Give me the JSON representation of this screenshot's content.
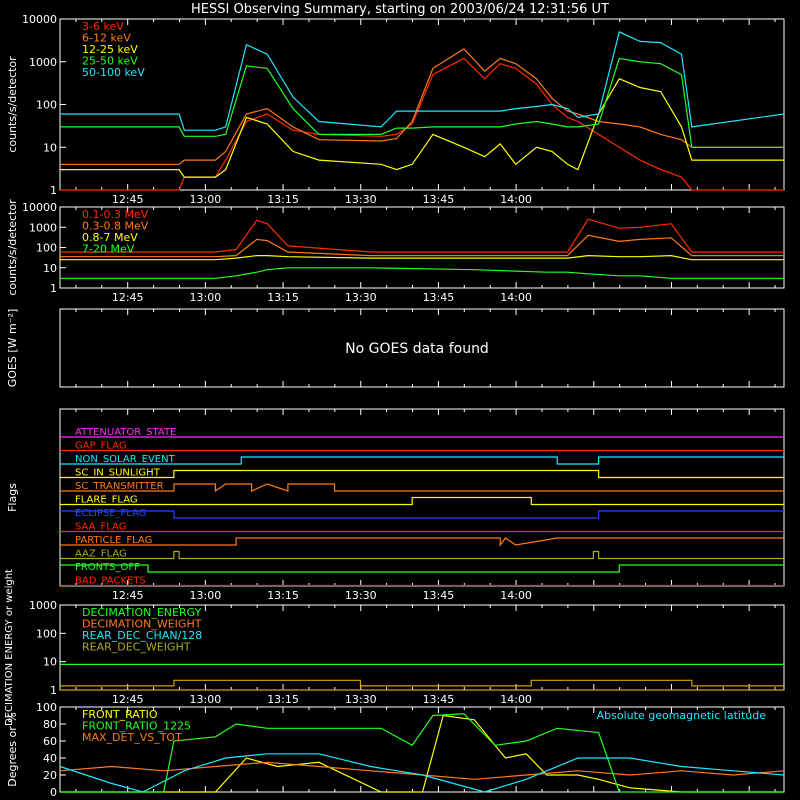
{
  "title": "HESSI Observing Summary, starting on 2003/06/24 12:31:56 UT",
  "colors": {
    "white": "#ffffff",
    "red": "#ff2a00",
    "orange": "#ff7a1a",
    "yellow": "#ffff00",
    "green": "#22ff22",
    "cyan": "#22e6ff",
    "magenta": "#ff2aff",
    "blue": "#2244ff",
    "olive": "#aaaa22",
    "goldenrod": "#d8a000",
    "gray": "#888888"
  },
  "time_axis": {
    "start_time": "12:31:56",
    "ticks": [
      "12:45",
      "13:00",
      "13:15",
      "13:30",
      "13:45",
      "14:00"
    ],
    "xlim_min": [
      0,
      139.8
    ]
  },
  "chart_data": [
    {
      "type": "line",
      "ylabel": "counts/s/detector",
      "yscale": "log",
      "ylim": [
        1,
        10000
      ],
      "yticks": [
        "1",
        "10",
        "100",
        "1000",
        "10000"
      ],
      "legend_position": "top-left",
      "series": [
        {
          "name": "3-6 keV",
          "color": "#ff2a00",
          "x": [
            0,
            23,
            24,
            30,
            32,
            36,
            40,
            45,
            50,
            62,
            65,
            68,
            72,
            78,
            82,
            85,
            88,
            92,
            95,
            98,
            100,
            104,
            108,
            112,
            116,
            120,
            122,
            139.8
          ],
          "y": [
            1,
            1,
            2,
            2,
            5,
            40,
            60,
            25,
            20,
            18,
            20,
            35,
            500,
            1200,
            400,
            900,
            700,
            300,
            100,
            50,
            40,
            20,
            10,
            5,
            3,
            2,
            1,
            1
          ]
        },
        {
          "name": "6-12 keV",
          "color": "#ff7a1a",
          "x": [
            0,
            23,
            24,
            30,
            32,
            36,
            40,
            45,
            50,
            62,
            65,
            68,
            72,
            78,
            82,
            85,
            88,
            92,
            95,
            98,
            100,
            104,
            108,
            112,
            116,
            120,
            122,
            139.8
          ],
          "y": [
            4,
            4,
            5,
            5,
            8,
            60,
            80,
            30,
            15,
            14,
            16,
            40,
            700,
            2000,
            600,
            1200,
            900,
            400,
            140,
            70,
            60,
            40,
            35,
            30,
            20,
            15,
            10,
            10
          ]
        },
        {
          "name": "12-25 keV",
          "color": "#ffff00",
          "x": [
            0,
            23,
            24,
            30,
            32,
            36,
            40,
            45,
            50,
            62,
            65,
            68,
            72,
            78,
            82,
            85,
            88,
            92,
            95,
            98,
            100,
            104,
            108,
            112,
            116,
            120,
            122,
            139.8
          ],
          "y": [
            3,
            3,
            2,
            2,
            3,
            50,
            35,
            8,
            5,
            4,
            3,
            4,
            20,
            10,
            6,
            12,
            4,
            10,
            8,
            4,
            3,
            60,
            400,
            250,
            200,
            30,
            5,
            5
          ]
        },
        {
          "name": "25-50 keV",
          "color": "#22ff22",
          "x": [
            0,
            23,
            24,
            30,
            32,
            36,
            40,
            45,
            50,
            62,
            65,
            68,
            72,
            78,
            82,
            85,
            88,
            92,
            95,
            98,
            100,
            104,
            108,
            112,
            116,
            120,
            122,
            139.8
          ],
          "y": [
            30,
            30,
            18,
            18,
            20,
            800,
            700,
            80,
            20,
            20,
            28,
            28,
            30,
            30,
            30,
            30,
            35,
            40,
            35,
            30,
            30,
            35,
            1200,
            1000,
            900,
            500,
            10,
            10
          ]
        },
        {
          "name": "50-100 keV",
          "color": "#22e6ff",
          "x": [
            0,
            23,
            24,
            30,
            32,
            36,
            40,
            45,
            50,
            62,
            65,
            68,
            72,
            78,
            82,
            85,
            88,
            92,
            95,
            98,
            100,
            104,
            108,
            112,
            116,
            120,
            122,
            139.8
          ],
          "y": [
            60,
            60,
            25,
            25,
            30,
            2500,
            1500,
            150,
            40,
            30,
            70,
            70,
            70,
            70,
            70,
            70,
            80,
            90,
            100,
            80,
            50,
            60,
            5000,
            3000,
            2800,
            1500,
            30,
            60
          ]
        }
      ]
    },
    {
      "type": "line",
      "ylabel": "counts/s/detector",
      "yscale": "log",
      "ylim": [
        1,
        10000
      ],
      "yticks": [
        "1",
        "10",
        "100",
        "1000",
        "10000"
      ],
      "legend_position": "top-left",
      "series": [
        {
          "name": "0.1-0.3 MeV",
          "color": "#ff2a00",
          "x": [
            0,
            30,
            34,
            38,
            40,
            44,
            60,
            80,
            94,
            98,
            102,
            108,
            112,
            118,
            122,
            139.8
          ],
          "y": [
            60,
            60,
            80,
            2200,
            1500,
            120,
            60,
            60,
            60,
            60,
            2500,
            900,
            1000,
            1500,
            60,
            60
          ]
        },
        {
          "name": "0.3-0.8 MeV",
          "color": "#ff7a1a",
          "x": [
            0,
            30,
            34,
            38,
            40,
            44,
            60,
            80,
            94,
            98,
            102,
            108,
            112,
            118,
            122,
            139.8
          ],
          "y": [
            35,
            35,
            40,
            250,
            220,
            60,
            40,
            40,
            40,
            40,
            400,
            200,
            250,
            300,
            40,
            40
          ]
        },
        {
          "name": "0.8-7 MeV",
          "color": "#ffff00",
          "x": [
            0,
            30,
            34,
            38,
            40,
            44,
            60,
            80,
            94,
            98,
            102,
            108,
            112,
            118,
            122,
            139.8
          ],
          "y": [
            25,
            25,
            30,
            40,
            40,
            35,
            30,
            30,
            30,
            30,
            40,
            35,
            35,
            40,
            25,
            25
          ]
        },
        {
          "name": "7-20 MeV",
          "color": "#22ff22",
          "x": [
            0,
            30,
            34,
            38,
            40,
            44,
            60,
            80,
            94,
            98,
            102,
            108,
            112,
            118,
            122,
            139.8
          ],
          "y": [
            3,
            3,
            4,
            6,
            8,
            10,
            10,
            8,
            6,
            6,
            5,
            4,
            4,
            3,
            3,
            3
          ]
        }
      ]
    },
    {
      "type": "line",
      "ylabel": "GOES [W m⁻²]",
      "message": "No GOES data found",
      "series": []
    },
    {
      "type": "table",
      "ylabel": "Flags",
      "flags": [
        {
          "name": "ATTENUATOR_STATE",
          "color": "#ff2aff",
          "x": [
            0,
            139.8
          ],
          "state": [
            0,
            0
          ]
        },
        {
          "name": "GAP_FLAG",
          "color": "#ff2a00",
          "x": [
            0,
            139.8
          ],
          "state": [
            0,
            0
          ]
        },
        {
          "name": "NON_SOLAR_EVENT",
          "color": "#22e6ff",
          "x": [
            0,
            35,
            35,
            96,
            96,
            104,
            104,
            139.8
          ],
          "state": [
            0,
            0,
            1,
            1,
            0,
            0,
            1,
            1
          ]
        },
        {
          "name": "SC_IN_SUNLIGHT",
          "color": "#ffff00",
          "x": [
            0,
            22,
            22,
            104,
            104,
            139.8
          ],
          "state": [
            0,
            0,
            1,
            1,
            0,
            0
          ]
        },
        {
          "name": "SC_TRANSMITTER",
          "color": "#ff7a1a",
          "x": [
            0,
            22,
            22,
            30,
            30,
            32,
            32,
            37,
            37,
            40,
            40,
            44,
            44,
            53,
            53,
            139.8
          ],
          "state": [
            0,
            0,
            1,
            1,
            0,
            1,
            1,
            1,
            0,
            1,
            1,
            0,
            1,
            1,
            0,
            0
          ]
        },
        {
          "name": "FLARE_FLAG",
          "color": "#ffff00",
          "x": [
            0,
            68,
            68,
            91,
            91,
            139.8
          ],
          "state": [
            0,
            0,
            1,
            1,
            0,
            0
          ]
        },
        {
          "name": "ECLIPSE_FLAG",
          "color": "#2244ff",
          "x": [
            0,
            22,
            22,
            104,
            104,
            139.8
          ],
          "state": [
            1,
            1,
            0,
            0,
            1,
            1
          ]
        },
        {
          "name": "SAA_FLAG",
          "color": "#ff2a00",
          "x": [
            0,
            139.8
          ],
          "state": [
            0,
            0
          ]
        },
        {
          "name": "PARTICLE_FLAG",
          "color": "#ff7a1a",
          "x": [
            0,
            34,
            34,
            85,
            85,
            86,
            86,
            88,
            88,
            96,
            96,
            139.8
          ],
          "state": [
            0,
            0,
            1,
            1,
            0,
            1,
            1,
            0,
            0,
            1,
            1,
            1
          ]
        },
        {
          "name": "AAZ_FLAG",
          "color": "#aaaa22",
          "x": [
            0,
            22,
            22,
            23,
            23,
            103,
            103,
            104,
            104,
            139.8
          ],
          "state": [
            0,
            0,
            1,
            1,
            0,
            0,
            1,
            1,
            0,
            0
          ]
        },
        {
          "name": "FRONTS_OFF",
          "color": "#22ff22",
          "x": [
            0,
            17,
            17,
            108,
            108,
            139.8
          ],
          "state": [
            1,
            1,
            0,
            0,
            1,
            1
          ]
        },
        {
          "name": "BAD_PACKETS",
          "color": "#ff2a00",
          "x": [
            0,
            139.8
          ],
          "state": [
            0,
            0
          ]
        }
      ]
    },
    {
      "type": "line",
      "ylabel": "DECIMATION ENERGY or weight",
      "yscale": "log",
      "ylim": [
        1,
        1000
      ],
      "yticks": [
        "1",
        "10",
        "100",
        "1000"
      ],
      "legend_position": "top-left",
      "series": [
        {
          "name": "DECIMATION_ENERGY",
          "color": "#22ff22",
          "x": [
            0,
            139.8
          ],
          "y": [
            0,
            0
          ]
        },
        {
          "name": "DECIMATION_WEIGHT",
          "color": "#ff7a1a",
          "x": [
            0,
            139.8
          ],
          "y": [
            0,
            0
          ]
        },
        {
          "name": "REAR_DEC_CHAN/128",
          "color": "#22e6ff",
          "x": [
            0,
            139.8
          ],
          "y": [
            0,
            0
          ]
        },
        {
          "name": "REAR_DEC_WEIGHT",
          "color": "#aaaa22",
          "x": [
            0,
            139.8
          ],
          "y": [
            0,
            0
          ]
        }
      ],
      "extra_lines": [
        {
          "color": "#22ff22",
          "x": [
            0,
            139.8
          ],
          "y": [
            8,
            8
          ]
        },
        {
          "color": "#d8a000",
          "x": [
            0,
            22,
            22,
            58,
            58,
            91,
            91,
            122,
            122,
            139.8
          ],
          "y": [
            1.4,
            1.4,
            2.2,
            2.2,
            1.4,
            1.4,
            2.2,
            2.2,
            1.4,
            1.4
          ]
        },
        {
          "color": "#d8a000",
          "x": [
            0,
            139.8
          ],
          "y": [
            1.0,
            1.0
          ]
        }
      ]
    },
    {
      "type": "line",
      "ylabel": "Degrees or %",
      "ylim": [
        0,
        100
      ],
      "yticks": [
        "0",
        "20",
        "40",
        "60",
        "80",
        "100"
      ],
      "legend_position": "top-left",
      "annotation": {
        "text": "Absolute geomagnetic latitude",
        "color": "#22e6ff",
        "position": "top-right"
      },
      "series": [
        {
          "name": "FRONT_RATIO",
          "color": "#ffff00",
          "x": [
            0,
            20,
            24,
            30,
            36,
            42,
            50,
            62,
            70,
            74,
            80,
            86,
            90,
            94,
            100,
            104,
            110,
            120,
            126,
            139.8
          ],
          "y": [
            0,
            0,
            0,
            0,
            40,
            30,
            35,
            0,
            0,
            90,
            85,
            40,
            45,
            20,
            20,
            15,
            5,
            0,
            0,
            0
          ]
        },
        {
          "name": "FRONT_RATIO_1225",
          "color": "#22ff22",
          "x": [
            0,
            20,
            22,
            30,
            34,
            40,
            50,
            62,
            68,
            72,
            78,
            84,
            90,
            96,
            104,
            108,
            120,
            122,
            139.8
          ],
          "y": [
            0,
            0,
            60,
            65,
            80,
            75,
            75,
            75,
            55,
            90,
            92,
            55,
            60,
            75,
            70,
            0,
            0,
            0,
            0
          ]
        },
        {
          "name": "MAX_DET_VS_TOT",
          "color": "#ff7a1a",
          "x": [
            0,
            10,
            20,
            30,
            40,
            50,
            60,
            70,
            80,
            90,
            100,
            110,
            120,
            130,
            139.8
          ],
          "y": [
            25,
            30,
            25,
            30,
            35,
            30,
            25,
            20,
            15,
            20,
            25,
            20,
            25,
            20,
            25
          ]
        },
        {
          "name": "",
          "color": "#22e6ff",
          "x": [
            0,
            10,
            16,
            24,
            32,
            40,
            50,
            60,
            70,
            76,
            82,
            90,
            100,
            110,
            120,
            130,
            139.8
          ],
          "y": [
            30,
            10,
            0,
            25,
            40,
            45,
            45,
            30,
            20,
            10,
            0,
            15,
            40,
            40,
            30,
            25,
            20
          ]
        }
      ]
    }
  ]
}
